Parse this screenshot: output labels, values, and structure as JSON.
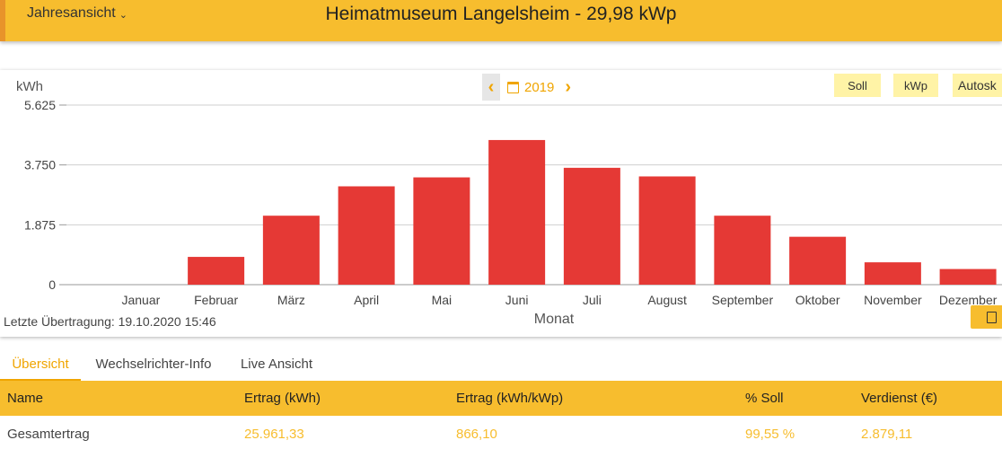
{
  "header": {
    "view_select": "Jahresansicht",
    "title": "Heimatmuseum Langelsheim - 29,98 kWp"
  },
  "chart_controls": {
    "year": "2019",
    "buttons": [
      "Soll",
      "kWp",
      "Autosk"
    ],
    "last_upload": "Letzte Übertragung: 19.10.2020 15:46"
  },
  "chart_data": {
    "type": "bar",
    "ylabel": "kWh",
    "xlabel": "Monat",
    "ylim": [
      0,
      5625
    ],
    "yticks": [
      0,
      1875,
      3750,
      5625
    ],
    "ytick_labels": [
      "0",
      "1.875",
      "3.750",
      "5.625"
    ],
    "grid": true,
    "categories": [
      "Januar",
      "Februar",
      "März",
      "April",
      "Mai",
      "Juni",
      "Juli",
      "August",
      "September",
      "Oktober",
      "November",
      "Dezember"
    ],
    "values": [
      0,
      870,
      2160,
      3080,
      3360,
      4530,
      3660,
      3390,
      2160,
      1500,
      700,
      490
    ],
    "bar_color": "#e53935"
  },
  "tabs": [
    {
      "label": "Übersicht",
      "active": true
    },
    {
      "label": "Wechselrichter-Info",
      "active": false
    },
    {
      "label": "Live Ansicht",
      "active": false
    }
  ],
  "table": {
    "headers": [
      "Name",
      "Ertrag (kWh)",
      "Ertrag (kWh/kWp)",
      "% Soll",
      "Verdienst (€)"
    ],
    "rows": [
      [
        "Gesamtertrag",
        "25.961,33",
        "866,10",
        "99,55 %",
        "2.879,11"
      ]
    ]
  },
  "colors": {
    "accent": "#f7bd2e",
    "accent_dark": "#e8932a",
    "chip": "#fff3a6",
    "highlight_text": "#f0a500"
  }
}
